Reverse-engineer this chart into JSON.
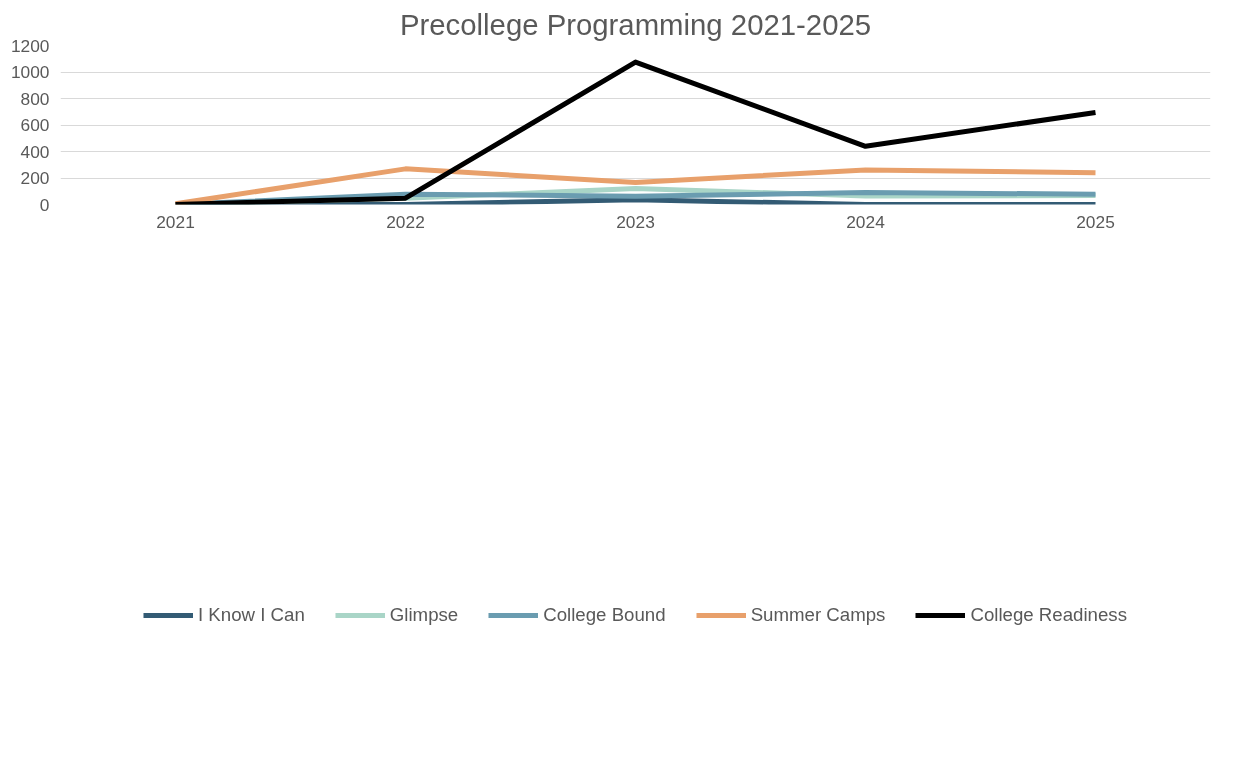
{
  "chart_data": {
    "type": "line",
    "title": "Precollege Programming 2021-2025",
    "categories": [
      "2021",
      "2022",
      "2023",
      "2024",
      "2025"
    ],
    "series": [
      {
        "name": "I Know I Can",
        "color": "#335b74",
        "values": [
          0,
          0,
          36,
          0,
          0
        ]
      },
      {
        "name": "Glimpse",
        "color": "#a9d5c7",
        "values": [
          0,
          48,
          120,
          65,
          67
        ]
      },
      {
        "name": "College Bound",
        "color": "#6a9cb0",
        "values": [
          0,
          78,
          63,
          90,
          78
        ]
      },
      {
        "name": "Summer Camps",
        "color": "#e8a06b",
        "values": [
          5,
          269,
          166,
          261,
          240
        ]
      },
      {
        "name": "College Readiness",
        "color": "#000000",
        "values": [
          0,
          48,
          1075,
          439,
          695
        ]
      }
    ],
    "ylim": [
      0,
      1200
    ],
    "yticks": [
      0,
      200,
      400,
      600,
      800,
      1000,
      1200
    ],
    "grid": "y",
    "legend": "bottom",
    "marker": "none",
    "line_style": "solid"
  }
}
